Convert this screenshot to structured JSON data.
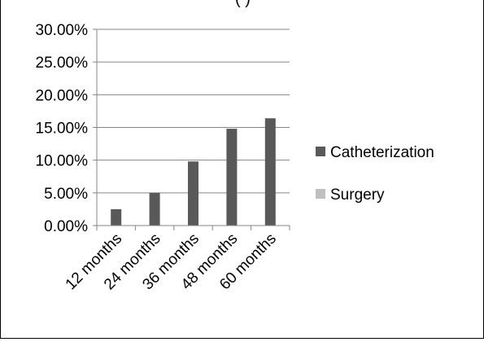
{
  "chart_title_partial": "(                       )",
  "chart_data": {
    "type": "bar",
    "title": "",
    "xlabel": "",
    "ylabel": "",
    "categories": [
      "12 months",
      "24 months",
      "36 months",
      "48 months",
      "60 months"
    ],
    "series": [
      {
        "name": "Catheterization",
        "values": [
          2.5,
          5.0,
          9.8,
          14.8,
          16.4
        ],
        "color": "#595959"
      },
      {
        "name": "Surgery",
        "values": [
          0,
          0,
          0,
          0,
          0
        ],
        "color": "#bfbfbf"
      }
    ],
    "ylim": [
      0,
      30
    ],
    "yticks": [
      0,
      5,
      10,
      15,
      20,
      25,
      30
    ],
    "ytick_labels": [
      "0.00%",
      "5.00%",
      "10.00%",
      "15.00%",
      "20.00%",
      "25.00%",
      "30.00%"
    ],
    "grid": true,
    "legend_position": "right"
  }
}
